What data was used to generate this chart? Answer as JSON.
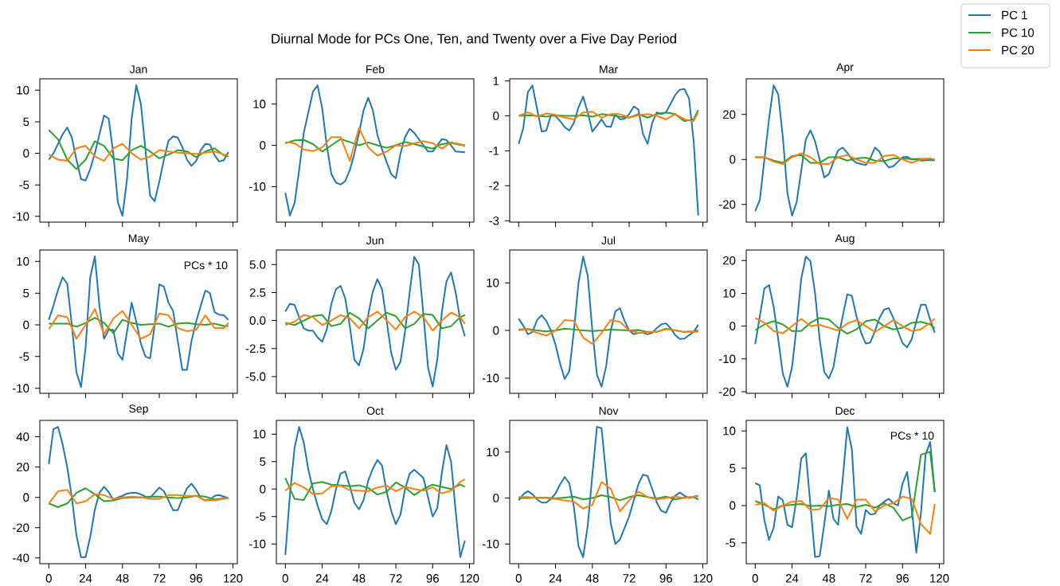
{
  "chart_data": [
    {
      "type": "line",
      "title": "Jan",
      "legend": "top right",
      "tick_labels": "y",
      "x": [
        0,
        3,
        6,
        9,
        12,
        15,
        18,
        21,
        24,
        27,
        30,
        33,
        36,
        39,
        42,
        45,
        48,
        51,
        54,
        57,
        60,
        63,
        66,
        69,
        72,
        75,
        78,
        81,
        84,
        87,
        90,
        93,
        96,
        99,
        102,
        105,
        108,
        111,
        114,
        117
      ],
      "xlim": [
        -5.85,
        122.85
      ],
      "xticks": [
        0,
        24,
        48,
        72,
        96,
        120
      ],
      "ylim": [
        -10.9,
        11.8
      ],
      "yticks": [
        -10,
        -5,
        0,
        5,
        10
      ],
      "series": [
        {
          "name": "PC 1",
          "color": "#1f77b4",
          "values": [
            -1,
            0,
            1.5,
            3,
            4.1,
            2.5,
            -1,
            -4.1,
            -4.3,
            -2.5,
            0,
            3,
            6,
            5.5,
            0,
            -7.8,
            -9.9,
            -4,
            5.5,
            10.8,
            7.8,
            0.5,
            -6.7,
            -7.6,
            -4.5,
            -1,
            2,
            2.7,
            2.5,
            1,
            -1,
            -2,
            -1.2,
            0.5,
            1.5,
            1.4,
            -0.3,
            -1.3,
            -1.1,
            0.2
          ]
        },
        {
          "name": "PC 10",
          "color": "#2ca02c",
          "x": [
            0,
            6,
            12,
            18,
            24,
            30,
            36,
            42,
            48,
            54,
            60,
            66,
            72,
            78,
            84,
            90,
            96,
            102,
            108,
            114,
            117
          ],
          "values": [
            3.7,
            2.2,
            -1,
            -2.5,
            -1,
            1.9,
            1.2,
            -0.8,
            -1.1,
            0.5,
            1.2,
            0.3,
            -0.8,
            -0.2,
            0.5,
            0.3,
            -0.6,
            0.3,
            0.8,
            -0.3,
            -0.5
          ]
        },
        {
          "name": "PC 20",
          "color": "#ff7f0e",
          "x": [
            0,
            6,
            12,
            18,
            24,
            30,
            36,
            42,
            48,
            54,
            60,
            66,
            72,
            78,
            84,
            90,
            96,
            102,
            108,
            114,
            117
          ],
          "values": [
            -0.2,
            -1,
            -1.2,
            0.8,
            1.2,
            -0.5,
            -1.2,
            0.8,
            1.5,
            0,
            -1,
            -0.5,
            0.5,
            0.3,
            0.1,
            0,
            -0.1,
            0.1,
            0.3,
            -0.2,
            -0.3
          ]
        }
      ]
    },
    {
      "type": "line",
      "title": "Feb",
      "subtitle": "Diurnal Mode for PCs One, Ten, and Twenty over a Five Day Period",
      "tick_labels": "y",
      "x": [
        0,
        3,
        6,
        9,
        12,
        15,
        18,
        21,
        24,
        27,
        30,
        33,
        36,
        39,
        42,
        45,
        48,
        51,
        54,
        57,
        60,
        63,
        66,
        69,
        72,
        75,
        78,
        81,
        84,
        87,
        90,
        93,
        96,
        99,
        102,
        105,
        108,
        111,
        114,
        117
      ],
      "xlim": [
        -5.85,
        122.85
      ],
      "xticks": [
        0,
        24,
        48,
        72,
        96,
        120
      ],
      "ylim": [
        -18.6,
        16.1
      ],
      "yticks": [
        -10,
        0,
        10
      ],
      "series": [
        {
          "color": "#1f77b4",
          "values": [
            -11.5,
            -17,
            -14,
            -6,
            3,
            8,
            13,
            14.5,
            9,
            0,
            -7,
            -9,
            -9.5,
            -8.7,
            -6,
            -2,
            3,
            8.5,
            11.5,
            8.5,
            2.5,
            -1,
            -4,
            -7,
            -8,
            -2,
            2,
            4,
            3,
            1.5,
            0,
            -1.5,
            -1.5,
            0,
            1.5,
            1.3,
            0,
            -1.5,
            -1.6,
            -1.7
          ]
        },
        {
          "color": "#2ca02c",
          "x": [
            0,
            6,
            12,
            18,
            24,
            30,
            36,
            42,
            48,
            54,
            60,
            66,
            72,
            78,
            84,
            90,
            96,
            102,
            108,
            114,
            117
          ],
          "values": [
            0.5,
            1.2,
            1.3,
            0.3,
            -1.5,
            0,
            1.5,
            0.8,
            0,
            0.7,
            0,
            -0.6,
            0,
            0.8,
            0.3,
            -0.3,
            -0.8,
            0.3,
            0.6,
            0.1,
            0
          ]
        },
        {
          "color": "#ff7f0e",
          "x": [
            0,
            6,
            12,
            18,
            24,
            30,
            36,
            42,
            48,
            54,
            60,
            66,
            72,
            78,
            84,
            90,
            96,
            102,
            108,
            114,
            117
          ],
          "values": [
            0.8,
            0.5,
            -1,
            -1.4,
            -0.5,
            2,
            2,
            -3.8,
            4.2,
            -0.5,
            -2.5,
            -1.5,
            0,
            -0.2,
            0.5,
            1,
            0.5,
            -0.8,
            0.7,
            0.3,
            -0.3
          ]
        }
      ]
    },
    {
      "type": "line",
      "title": "Mar",
      "tick_labels": "y",
      "x": [
        0,
        3,
        6,
        9,
        12,
        15,
        18,
        21,
        24,
        27,
        30,
        33,
        36,
        39,
        42,
        45,
        48,
        51,
        54,
        57,
        60,
        63,
        66,
        69,
        72,
        75,
        78,
        81,
        84,
        87,
        90,
        93,
        96,
        99,
        102,
        105,
        108,
        111,
        114,
        117
      ],
      "xlim": [
        -5.85,
        122.85
      ],
      "xticks": [
        0,
        24,
        48,
        72,
        96,
        120
      ],
      "ylim": [
        -3.04,
        1.06
      ],
      "yticks": [
        -3,
        -2,
        -1,
        0,
        1
      ],
      "series": [
        {
          "color": "#1f77b4",
          "values": [
            -0.8,
            -0.35,
            0.68,
            0.87,
            0.2,
            -0.45,
            -0.42,
            0.02,
            0,
            -0.15,
            -0.32,
            -0.42,
            -0.2,
            0.25,
            0.55,
            0.1,
            -0.45,
            -0.28,
            -0.1,
            -0.3,
            -0.32,
            0.05,
            -0.1,
            -0.08,
            0.05,
            0.27,
            0.18,
            -0.52,
            -0.8,
            -0.2,
            0.1,
            0.05,
            0.1,
            0.35,
            0.6,
            0.75,
            0.77,
            0.5,
            -0.7,
            -2.85
          ]
        },
        {
          "color": "#2ca02c",
          "x": [
            0,
            6,
            12,
            18,
            24,
            30,
            36,
            42,
            48,
            54,
            60,
            66,
            72,
            78,
            84,
            90,
            96,
            102,
            108,
            114,
            117
          ],
          "values": [
            0,
            0.02,
            0,
            -0.02,
            0.02,
            0,
            0,
            0.02,
            -0.02,
            0.05,
            0.02,
            -0.02,
            -0.05,
            0.05,
            -0.05,
            0.05,
            0.1,
            0.05,
            -0.15,
            -0.1,
            0.17
          ]
        },
        {
          "color": "#ff7f0e",
          "x": [
            0,
            6,
            12,
            18,
            24,
            30,
            36,
            42,
            48,
            54,
            60,
            66,
            72,
            78,
            84,
            90,
            96,
            102,
            108,
            114,
            117
          ],
          "values": [
            0,
            0.1,
            -0.02,
            0.07,
            0.03,
            -0.05,
            -0.1,
            0.1,
            0.12,
            -0.05,
            0.05,
            0.05,
            -0.05,
            0.02,
            0.05,
            0,
            -0.1,
            0.05,
            -0.1,
            -0.15,
            0.1
          ]
        }
      ]
    },
    {
      "type": "line",
      "title": "Apr",
      "tick_labels": "y",
      "x": [
        0,
        3,
        6,
        9,
        12,
        15,
        18,
        21,
        24,
        27,
        30,
        33,
        36,
        39,
        42,
        45,
        48,
        51,
        54,
        57,
        60,
        63,
        66,
        69,
        72,
        75,
        78,
        81,
        84,
        87,
        90,
        93,
        96,
        99,
        102,
        105,
        108,
        111,
        114,
        117
      ],
      "xlim": [
        -5.85,
        122.85
      ],
      "xticks": [
        0,
        24,
        48,
        72,
        96,
        120
      ],
      "ylim": [
        -27.9,
        35.9
      ],
      "yticks": [
        -20,
        0,
        20
      ],
      "series": [
        {
          "color": "#1f77b4",
          "values": [
            -23,
            -18,
            0,
            18,
            33,
            29,
            10,
            -15,
            -25,
            -19,
            -5,
            9,
            13,
            8,
            0,
            -8,
            -6.5,
            -1,
            4,
            5.3,
            3,
            0,
            -1.5,
            -2,
            -2.5,
            0.5,
            5.3,
            3.5,
            -1,
            -3.5,
            -3,
            -1,
            1,
            1.2,
            0,
            0,
            -0.5,
            -0.3,
            -0.3,
            -0.3
          ]
        },
        {
          "color": "#2ca02c",
          "x": [
            0,
            6,
            12,
            18,
            24,
            30,
            36,
            42,
            48,
            54,
            60,
            66,
            72,
            78,
            84,
            90,
            96,
            102,
            108,
            114,
            117
          ],
          "values": [
            1,
            1,
            -0.5,
            -1.5,
            1.5,
            2,
            -1.5,
            -1.5,
            1,
            1,
            -0.5,
            0.5,
            0.8,
            -0.5,
            -0.8,
            0.5,
            0.5,
            0.2,
            0.3,
            0.2,
            0
          ]
        },
        {
          "color": "#ff7f0e",
          "x": [
            0,
            6,
            12,
            18,
            24,
            30,
            36,
            42,
            48,
            54,
            60,
            66,
            72,
            78,
            84,
            90,
            96,
            102,
            108,
            114,
            117
          ],
          "values": [
            1,
            1,
            -1,
            -2,
            1,
            2.8,
            1,
            -2,
            -2,
            1,
            2,
            0,
            -1.5,
            -1.5,
            1.5,
            2,
            0,
            -1.5,
            0,
            0.5,
            0
          ]
        }
      ]
    },
    {
      "type": "line",
      "title": "May",
      "annotations": [
        "PCs * 10"
      ],
      "tick_labels": "y",
      "x": [
        0,
        3,
        6,
        9,
        12,
        15,
        18,
        21,
        24,
        27,
        30,
        33,
        36,
        39,
        42,
        45,
        48,
        51,
        54,
        57,
        60,
        63,
        66,
        69,
        72,
        75,
        78,
        81,
        84,
        87,
        90,
        93,
        96,
        99,
        102,
        105,
        108,
        111,
        114,
        117
      ],
      "xlim": [
        -5.85,
        122.85
      ],
      "xticks": [
        0,
        24,
        48,
        72,
        96,
        120
      ],
      "ylim": [
        -10.8,
        11.8
      ],
      "yticks": [
        -10,
        -5,
        0,
        5,
        10
      ],
      "series": [
        {
          "color": "#1f77b4",
          "values": [
            0.8,
            3,
            5.5,
            7.5,
            6.5,
            0,
            -7.5,
            -9.8,
            -3.5,
            7.5,
            10.8,
            3,
            -2.2,
            -0.8,
            -0.8,
            -4.5,
            -5.5,
            -1,
            3.5,
            0.5,
            -3,
            -5,
            -5.3,
            0,
            6.4,
            6,
            3.5,
            2.2,
            -2.5,
            -7.1,
            -7.1,
            -2.5,
            0.5,
            3,
            5.4,
            5,
            2,
            1.6,
            1.5,
            0.8
          ]
        },
        {
          "color": "#2ca02c",
          "x": [
            0,
            6,
            12,
            18,
            24,
            30,
            36,
            42,
            48,
            54,
            60,
            66,
            72,
            78,
            84,
            90,
            96,
            102,
            108,
            114,
            117
          ],
          "values": [
            0.2,
            0.2,
            0.2,
            -0.3,
            0.3,
            1.1,
            0.3,
            -1.3,
            0.8,
            0.3,
            0,
            0.1,
            0.2,
            -0.3,
            0.2,
            0.3,
            0.1,
            0,
            0.2,
            -0.2,
            -0.2
          ]
        },
        {
          "color": "#ff7f0e",
          "x": [
            0,
            6,
            12,
            18,
            24,
            30,
            36,
            42,
            48,
            54,
            60,
            66,
            72,
            78,
            84,
            90,
            96,
            102,
            108,
            114,
            117
          ],
          "values": [
            -0.7,
            1.5,
            1.2,
            -2.2,
            0,
            2.5,
            -1.5,
            1,
            2.2,
            0,
            -2.2,
            -1.5,
            1.8,
            1.5,
            -0.5,
            -1,
            -0.8,
            1.5,
            -0.5,
            -0.5,
            0.3
          ]
        }
      ]
    },
    {
      "type": "line",
      "title": "Jun",
      "tick_labels": "y",
      "x": [
        0,
        3,
        6,
        9,
        12,
        15,
        18,
        21,
        24,
        27,
        30,
        33,
        36,
        39,
        42,
        45,
        48,
        51,
        54,
        57,
        60,
        63,
        66,
        69,
        72,
        75,
        78,
        81,
        84,
        87,
        90,
        93,
        96,
        99,
        102,
        105,
        108,
        111,
        114,
        117
      ],
      "xlim": [
        -5.85,
        122.85
      ],
      "xticks": [
        0,
        24,
        48,
        72,
        96,
        120
      ],
      "ylim": [
        -6.5,
        6.3
      ],
      "yticks": [
        {
          "value": -5,
          "label": "-5.0"
        },
        {
          "value": -2.5,
          "label": "-2.5"
        },
        {
          "value": 0,
          "label": "0.0"
        },
        {
          "value": 2.5,
          "label": "2.5"
        },
        {
          "value": 5,
          "label": "5.0"
        }
      ],
      "series": [
        {
          "color": "#1f77b4",
          "values": [
            0.8,
            1.5,
            1.4,
            0.3,
            -0.7,
            -0.9,
            -0.9,
            -1.5,
            -1.9,
            -0.8,
            1.5,
            2.8,
            3.1,
            2,
            -0.5,
            -3.5,
            -4,
            -2.5,
            0.5,
            2.6,
            3.7,
            2.8,
            0,
            -2.9,
            -4.4,
            -3.7,
            -1,
            2.5,
            5.7,
            5,
            0.5,
            -4.2,
            -5.9,
            -3.5,
            0.8,
            3.5,
            4.3,
            2.5,
            0,
            -1.4
          ]
        },
        {
          "color": "#2ca02c",
          "x": [
            0,
            6,
            12,
            18,
            24,
            30,
            36,
            42,
            48,
            54,
            60,
            66,
            72,
            78,
            84,
            90,
            96,
            102,
            108,
            114,
            117
          ],
          "values": [
            -0.2,
            -0.4,
            0,
            0.4,
            0.5,
            -0.5,
            -0.3,
            0.7,
            0.2,
            -0.7,
            0,
            0.7,
            0.4,
            -0.7,
            -0.3,
            0.6,
            0.5,
            -0.7,
            -0.5,
            0.3,
            0.5
          ]
        },
        {
          "color": "#ff7f0e",
          "x": [
            0,
            6,
            12,
            18,
            24,
            30,
            36,
            42,
            48,
            54,
            60,
            66,
            72,
            78,
            84,
            90,
            96,
            102,
            108,
            114,
            117
          ],
          "values": [
            -0.4,
            -0.1,
            0.5,
            0.3,
            -0.4,
            0,
            0.5,
            0.2,
            -0.7,
            0.3,
            0.8,
            0,
            -0.8,
            0.3,
            0.8,
            0.3,
            -0.9,
            0,
            0.7,
            0.3,
            -0.3
          ]
        }
      ]
    },
    {
      "type": "line",
      "title": "Jul",
      "tick_labels": "y",
      "x": [
        0,
        3,
        6,
        9,
        12,
        15,
        18,
        21,
        24,
        27,
        30,
        33,
        36,
        39,
        42,
        45,
        48,
        51,
        54,
        57,
        60,
        63,
        66,
        69,
        72,
        75,
        78,
        81,
        84,
        87,
        90,
        93,
        96,
        99,
        102,
        105,
        108,
        111,
        114,
        117
      ],
      "xlim": [
        -5.85,
        122.85
      ],
      "xticks": [
        0,
        24,
        48,
        72,
        96,
        120
      ],
      "ylim": [
        -13.2,
        16.9
      ],
      "yticks": [
        -10,
        0,
        10
      ],
      "series": [
        {
          "color": "#1f77b4",
          "values": [
            2.5,
            1,
            -0.8,
            -0.3,
            2.2,
            3.2,
            2,
            0,
            -3,
            -7,
            -10.2,
            -8.5,
            0,
            10,
            15.5,
            11.5,
            0,
            -9.3,
            -11.8,
            -7.5,
            0,
            4,
            4.7,
            2,
            0,
            -0.8,
            -0.5,
            -0.5,
            -0.8,
            -0.5,
            0.5,
            1.3,
            1.5,
            0.5,
            -1,
            -1.8,
            -1.7,
            -1,
            -0.3,
            1.2
          ]
        },
        {
          "color": "#2ca02c",
          "x": [
            0,
            6,
            12,
            18,
            24,
            30,
            36,
            42,
            48,
            54,
            60,
            66,
            72,
            78,
            84,
            90,
            96,
            102,
            108,
            114,
            117
          ],
          "values": [
            0.2,
            0.3,
            0,
            -0.2,
            0,
            0.4,
            0.2,
            0,
            -0.1,
            0,
            0.2,
            0.1,
            0,
            0.1,
            -0.3,
            -0.3,
            0.4,
            0,
            -0.3,
            -0.2,
            0
          ]
        },
        {
          "color": "#ff7f0e",
          "x": [
            0,
            6,
            12,
            18,
            24,
            30,
            36,
            42,
            48,
            54,
            60,
            66,
            72,
            78,
            84,
            90,
            96,
            102,
            108,
            114,
            117
          ],
          "values": [
            0,
            0.3,
            -0.5,
            -1.1,
            0,
            2.2,
            2,
            -1.5,
            -2.8,
            -0.5,
            2.2,
            1.8,
            0,
            -0.5,
            -0.4,
            -0.3,
            0.3,
            0,
            -0.3,
            -0.3,
            -0.3
          ]
        }
      ]
    },
    {
      "type": "line",
      "title": "Aug",
      "tick_labels": "y",
      "x": [
        0,
        3,
        6,
        9,
        12,
        15,
        18,
        21,
        24,
        27,
        30,
        33,
        36,
        39,
        42,
        45,
        48,
        51,
        54,
        57,
        60,
        63,
        66,
        69,
        72,
        75,
        78,
        81,
        84,
        87,
        90,
        93,
        96,
        99,
        102,
        105,
        108,
        111,
        114,
        117
      ],
      "xlim": [
        -5.85,
        122.85
      ],
      "xticks": [
        0,
        24,
        48,
        72,
        96,
        120
      ],
      "ylim": [
        -20.5,
        23.2
      ],
      "yticks": [
        -20,
        -10,
        0,
        10,
        20
      ],
      "series": [
        {
          "color": "#1f77b4",
          "values": [
            -5.5,
            3,
            11.5,
            12.5,
            6,
            -4,
            -14.5,
            -18.5,
            -12.5,
            0,
            14.5,
            21.2,
            19.8,
            10,
            -4,
            -14,
            -16,
            -12.5,
            -4,
            3,
            9.7,
            9.2,
            3,
            -2,
            -5.3,
            -5,
            -1.5,
            2.5,
            5,
            5.5,
            2.5,
            -1.5,
            -5.2,
            -6.5,
            -4,
            1.5,
            6.5,
            6.5,
            2,
            -2
          ]
        },
        {
          "color": "#2ca02c",
          "x": [
            0,
            6,
            12,
            18,
            24,
            30,
            36,
            42,
            48,
            54,
            60,
            66,
            72,
            78,
            84,
            90,
            96,
            102,
            108,
            114,
            117
          ],
          "values": [
            -1.2,
            0.5,
            1.5,
            0.5,
            -1.5,
            -1.5,
            1,
            2.5,
            2,
            -0.5,
            -2.3,
            -1,
            1.5,
            2,
            0,
            -1,
            -0.5,
            1,
            1.3,
            0.5,
            -0.7
          ]
        },
        {
          "color": "#ff7f0e",
          "x": [
            0,
            6,
            12,
            18,
            24,
            30,
            36,
            42,
            48,
            54,
            60,
            66,
            72,
            78,
            84,
            90,
            96,
            102,
            108,
            114,
            117
          ],
          "values": [
            2.5,
            1,
            -1.5,
            -2.2,
            0,
            2.2,
            0,
            0.4,
            -0.5,
            -1.3,
            0.8,
            1.8,
            0,
            -1.8,
            0,
            1.8,
            0,
            -1.5,
            -1,
            1,
            2.3
          ]
        }
      ]
    },
    {
      "type": "line",
      "title": "Sep",
      "x": [
        0,
        3,
        6,
        9,
        12,
        15,
        18,
        21,
        24,
        27,
        30,
        33,
        36,
        39,
        42,
        45,
        48,
        51,
        54,
        57,
        60,
        63,
        66,
        69,
        72,
        75,
        78,
        81,
        84,
        87,
        90,
        93,
        96,
        99,
        102,
        105,
        108,
        111,
        114,
        117
      ],
      "xlim": [
        -5.85,
        122.85
      ],
      "xticks": [
        0,
        24,
        48,
        72,
        96,
        120
      ],
      "ylim": [
        -43.8,
        50.8
      ],
      "yticks": [
        -40,
        -20,
        0,
        20,
        40
      ],
      "series": [
        {
          "color": "#1f77b4",
          "values": [
            22,
            45,
            46.5,
            35,
            20,
            0,
            -25,
            -39.5,
            -39.5,
            -26,
            -8,
            3,
            7,
            3.5,
            -1.5,
            0,
            1,
            2.5,
            3,
            3,
            2,
            0.5,
            0,
            3,
            6.5,
            4,
            -2,
            -8.5,
            -8.5,
            -1,
            6,
            9,
            5,
            -0.5,
            -2,
            -1.5,
            1,
            1.5,
            0.5,
            -0.5
          ]
        },
        {
          "color": "#2ca02c",
          "x": [
            0,
            6,
            12,
            18,
            24,
            30,
            36,
            42,
            48,
            54,
            60,
            66,
            72,
            78,
            84,
            90,
            96,
            102,
            108,
            114,
            117
          ],
          "values": [
            -4,
            -6.5,
            -4,
            3,
            6,
            2,
            -2.5,
            -2,
            -0.5,
            0,
            0,
            0.5,
            0.5,
            0,
            -0.5,
            0,
            1,
            0.5,
            -1.5,
            -0.5,
            -0.5
          ]
        },
        {
          "color": "#ff7f0e",
          "x": [
            0,
            6,
            12,
            18,
            24,
            30,
            36,
            42,
            48,
            54,
            60,
            66,
            72,
            78,
            84,
            90,
            96,
            102,
            108,
            114,
            117
          ],
          "values": [
            -4,
            4,
            5,
            -4,
            -2.5,
            2,
            1.5,
            -1,
            0,
            0.5,
            0,
            -1,
            -1,
            1.5,
            1.5,
            1,
            1,
            -2,
            -2,
            -1,
            -0.5
          ]
        }
      ]
    },
    {
      "type": "line",
      "title": "Oct",
      "x": [
        0,
        3,
        6,
        9,
        12,
        15,
        18,
        21,
        24,
        27,
        30,
        33,
        36,
        39,
        42,
        45,
        48,
        51,
        54,
        57,
        60,
        63,
        66,
        69,
        72,
        75,
        78,
        81,
        84,
        87,
        90,
        93,
        96,
        99,
        102,
        105,
        108,
        111,
        114,
        117
      ],
      "xlim": [
        -5.85,
        122.85
      ],
      "xticks": [
        0,
        24,
        48,
        72,
        96,
        120
      ],
      "ylim": [
        -13.6,
        12.5
      ],
      "yticks": [
        -10,
        -5,
        0,
        5,
        10
      ],
      "series": [
        {
          "color": "#1f77b4",
          "values": [
            -12,
            -1,
            7.5,
            11.3,
            8.5,
            3.5,
            0,
            -3,
            -5.5,
            -6.4,
            -4,
            0,
            2.8,
            3.2,
            0.5,
            -2.5,
            -3.7,
            -2,
            1.5,
            3.7,
            5.3,
            4.3,
            -0.5,
            -4,
            -6.4,
            -4.7,
            0,
            2.8,
            3.5,
            2.8,
            2,
            -1.5,
            -5,
            -3.5,
            3,
            8,
            5,
            -4,
            -12.4,
            -9.4
          ]
        },
        {
          "color": "#2ca02c",
          "x": [
            0,
            6,
            12,
            18,
            24,
            30,
            36,
            42,
            48,
            54,
            60,
            66,
            72,
            78,
            84,
            90,
            96,
            102,
            108,
            114,
            117
          ],
          "values": [
            2,
            -1.8,
            -2,
            1,
            1.3,
            0.8,
            0.7,
            0.5,
            0.7,
            0.2,
            -1,
            -0.5,
            1.2,
            0.3,
            -1.1,
            0,
            0.8,
            0.4,
            0,
            0.8,
            0.4
          ]
        },
        {
          "color": "#ff7f0e",
          "x": [
            0,
            6,
            12,
            18,
            24,
            30,
            36,
            42,
            48,
            54,
            60,
            66,
            72,
            78,
            84,
            90,
            96,
            102,
            108,
            114,
            117
          ],
          "values": [
            -0.3,
            1.1,
            0.3,
            -0.9,
            -0.8,
            0.5,
            0.6,
            -0.2,
            -0.3,
            -0.4,
            0.3,
            0.6,
            -0.4,
            0.4,
            0,
            -0.3,
            0.3,
            -0.8,
            -0.3,
            1.3,
            1.8
          ]
        }
      ]
    },
    {
      "type": "line",
      "title": "Nov",
      "x": [
        0,
        3,
        6,
        9,
        12,
        15,
        18,
        21,
        24,
        27,
        30,
        33,
        36,
        39,
        42,
        45,
        48,
        51,
        54,
        57,
        60,
        63,
        66,
        69,
        72,
        75,
        78,
        81,
        84,
        87,
        90,
        93,
        96,
        99,
        102,
        105,
        108,
        111,
        114,
        117
      ],
      "xlim": [
        -5.85,
        122.85
      ],
      "xticks": [
        0,
        24,
        48,
        72,
        96,
        120
      ],
      "ylim": [
        -14.3,
        16.9
      ],
      "yticks": [
        -10,
        0,
        10
      ],
      "series": [
        {
          "color": "#1f77b4",
          "values": [
            -0.5,
            0.8,
            1.5,
            0.8,
            -0.3,
            -1,
            -1,
            -0.2,
            1,
            3,
            4.6,
            3.2,
            -2,
            -10.5,
            -12.9,
            -6,
            5,
            15.5,
            15.2,
            5,
            -5.5,
            -10,
            -9,
            -6.5,
            -4,
            -0.5,
            3,
            5.1,
            4.8,
            2,
            -1,
            -2.8,
            -3.2,
            -1,
            0.5,
            1.2,
            0.5,
            0,
            0.3,
            0.5
          ]
        },
        {
          "color": "#2ca02c",
          "x": [
            0,
            6,
            12,
            18,
            24,
            30,
            36,
            42,
            48,
            54,
            60,
            66,
            72,
            78,
            84,
            90,
            96,
            102,
            108,
            114,
            117
          ],
          "values": [
            0,
            0,
            0.1,
            0.1,
            -0.1,
            0.1,
            0.3,
            -0.3,
            0,
            0.6,
            0.2,
            -0.5,
            0.2,
            0.6,
            0.2,
            -0.1,
            0.3,
            -0.3,
            0.1,
            0.2,
            -0.3
          ]
        },
        {
          "color": "#ff7f0e",
          "x": [
            0,
            6,
            12,
            18,
            24,
            30,
            36,
            42,
            48,
            54,
            60,
            66,
            72,
            78,
            84,
            90,
            96,
            102,
            108,
            114,
            117
          ],
          "values": [
            0.2,
            0.2,
            0,
            0,
            -0.2,
            -0.5,
            -0.8,
            -2.3,
            -1.5,
            3.5,
            2,
            -2.9,
            -0.5,
            1.4,
            0.2,
            -0.3,
            0,
            0.3,
            0,
            0.3,
            0.3
          ]
        }
      ]
    },
    {
      "type": "line",
      "title": "Dec",
      "annotations": [
        "PCs * 10"
      ],
      "x": [
        0,
        3,
        6,
        9,
        12,
        15,
        18,
        21,
        24,
        27,
        30,
        33,
        36,
        39,
        42,
        45,
        48,
        51,
        54,
        57,
        60,
        63,
        66,
        69,
        72,
        75,
        78,
        81,
        84,
        87,
        90,
        93,
        96,
        99,
        102,
        105,
        108,
        111,
        114,
        117
      ],
      "xlim": [
        -5.85,
        122.85
      ],
      "xticks": [
        0,
        24,
        48,
        72,
        96,
        120
      ],
      "ylim": [
        -7.8,
        11.4
      ],
      "yticks": [
        -5,
        0,
        5,
        10
      ],
      "series": [
        {
          "color": "#1f77b4",
          "values": [
            3,
            2.7,
            -2,
            -4.6,
            -3,
            1.2,
            0.7,
            -2.6,
            -2.9,
            1,
            6.3,
            7,
            0,
            -6.9,
            -6.8,
            -2.5,
            2,
            -1.8,
            -2.6,
            3.5,
            10.5,
            7.5,
            -2.8,
            -3.8,
            -0.6,
            -1.2,
            -1.1,
            0,
            0.5,
            0.9,
            0.3,
            0,
            2.9,
            4.5,
            -0.5,
            -6.3,
            -1,
            6.8,
            8.5,
            1.8
          ]
        },
        {
          "color": "#2ca02c",
          "x": [
            0,
            6,
            12,
            18,
            24,
            30,
            36,
            42,
            48,
            54,
            60,
            66,
            72,
            78,
            84,
            90,
            96,
            102,
            108,
            114,
            117
          ],
          "values": [
            0.6,
            0.1,
            -0.5,
            0,
            0.1,
            0.2,
            -0.1,
            0,
            -0.1,
            0.1,
            0.2,
            -0.2,
            0.1,
            -0.3,
            0.3,
            -0.3,
            -2,
            -1.5,
            6.8,
            7.2,
            1.8
          ]
        },
        {
          "color": "#ff7f0e",
          "x": [
            0,
            6,
            12,
            18,
            24,
            30,
            36,
            42,
            48,
            54,
            60,
            66,
            72,
            78,
            84,
            90,
            96,
            102,
            108,
            114,
            117
          ],
          "values": [
            0.1,
            0.3,
            -0.7,
            0,
            0.5,
            0.6,
            -0.6,
            -0.5,
            1,
            0.8,
            -1.8,
            0.8,
            0.8,
            -0.8,
            0,
            0.3,
            1.2,
            0.9,
            -2.5,
            -3.8,
            0.2
          ]
        }
      ]
    }
  ]
}
